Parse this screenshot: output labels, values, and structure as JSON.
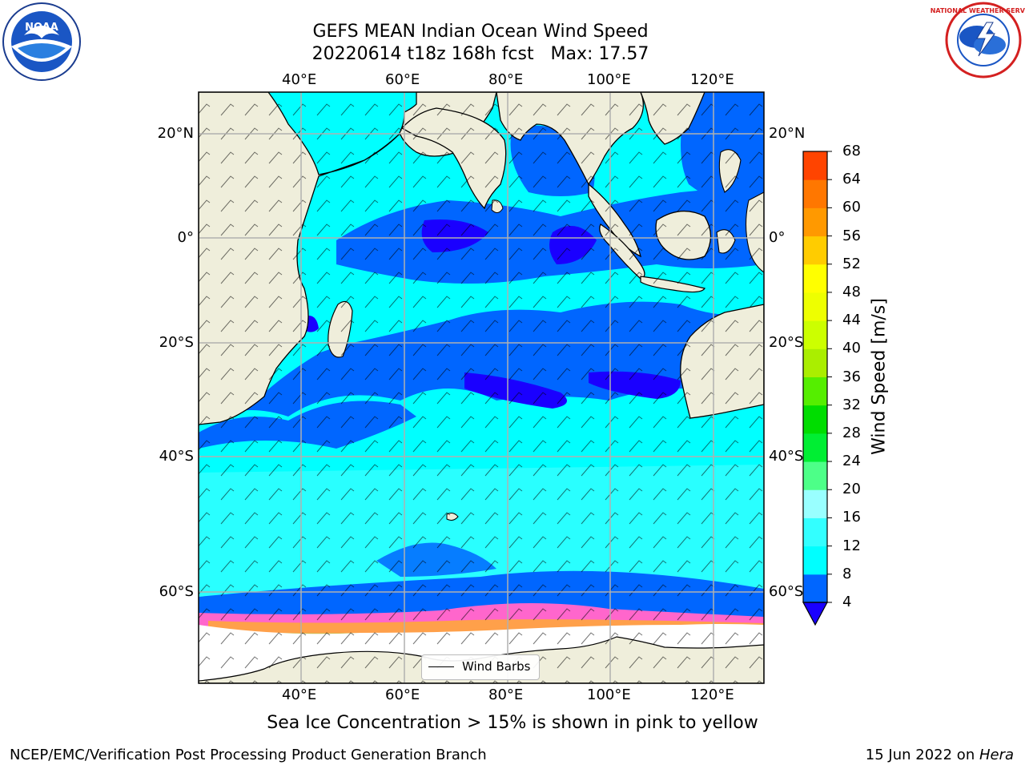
{
  "title": {
    "line1": "GEFS MEAN Indian Ocean Wind Speed",
    "line2": "20220614 t18z 168h fcst   Max: 17.57"
  },
  "axes": {
    "lon_labels": [
      "40°E",
      "60°E",
      "80°E",
      "100°E",
      "120°E"
    ],
    "lat_labels": [
      "20°N",
      "0°",
      "20°S",
      "40°S",
      "60°S"
    ]
  },
  "colorbar": {
    "label": "Wind Speed [m/s]",
    "ticks": [
      "4",
      "8",
      "12",
      "16",
      "20",
      "24",
      "28",
      "32",
      "36",
      "40",
      "44",
      "48",
      "52",
      "56",
      "60",
      "64",
      "68"
    ],
    "colors": [
      "#0066ff",
      "#00ffff",
      "#33ffff",
      "#99ffff",
      "#4dff88",
      "#00ee33",
      "#00dd00",
      "#55ee00",
      "#aaee00",
      "#ccff00",
      "#eeff00",
      "#ffff00",
      "#ffcc00",
      "#ff9900",
      "#ff7700",
      "#ff4400",
      "#ff2200",
      "#ff0000"
    ],
    "extend_color": "#1a00ff"
  },
  "legend": {
    "label": "Wind Barbs"
  },
  "caption": "Sea Ice Concentration > 15% is shown in pink to yellow",
  "footer": {
    "left": "NCEP/EMC/Verification Post Processing Product Generation Branch",
    "date": "15 Jun 2022 on ",
    "host": "Hera"
  },
  "logos": {
    "left": "NOAA",
    "right": "NATIONAL WEATHER SERVICE"
  },
  "colors": {
    "land": "#efeedb",
    "speed_4_8": "#0066ff",
    "speed_8_12": "#00ffff",
    "speed_12_16": "#33ffff",
    "speed_lt_4": "#1a00ff",
    "grid": "#b0b0b0",
    "sea_ice_pink": "#ff66cc",
    "sea_ice_orange": "#ffaa33"
  }
}
